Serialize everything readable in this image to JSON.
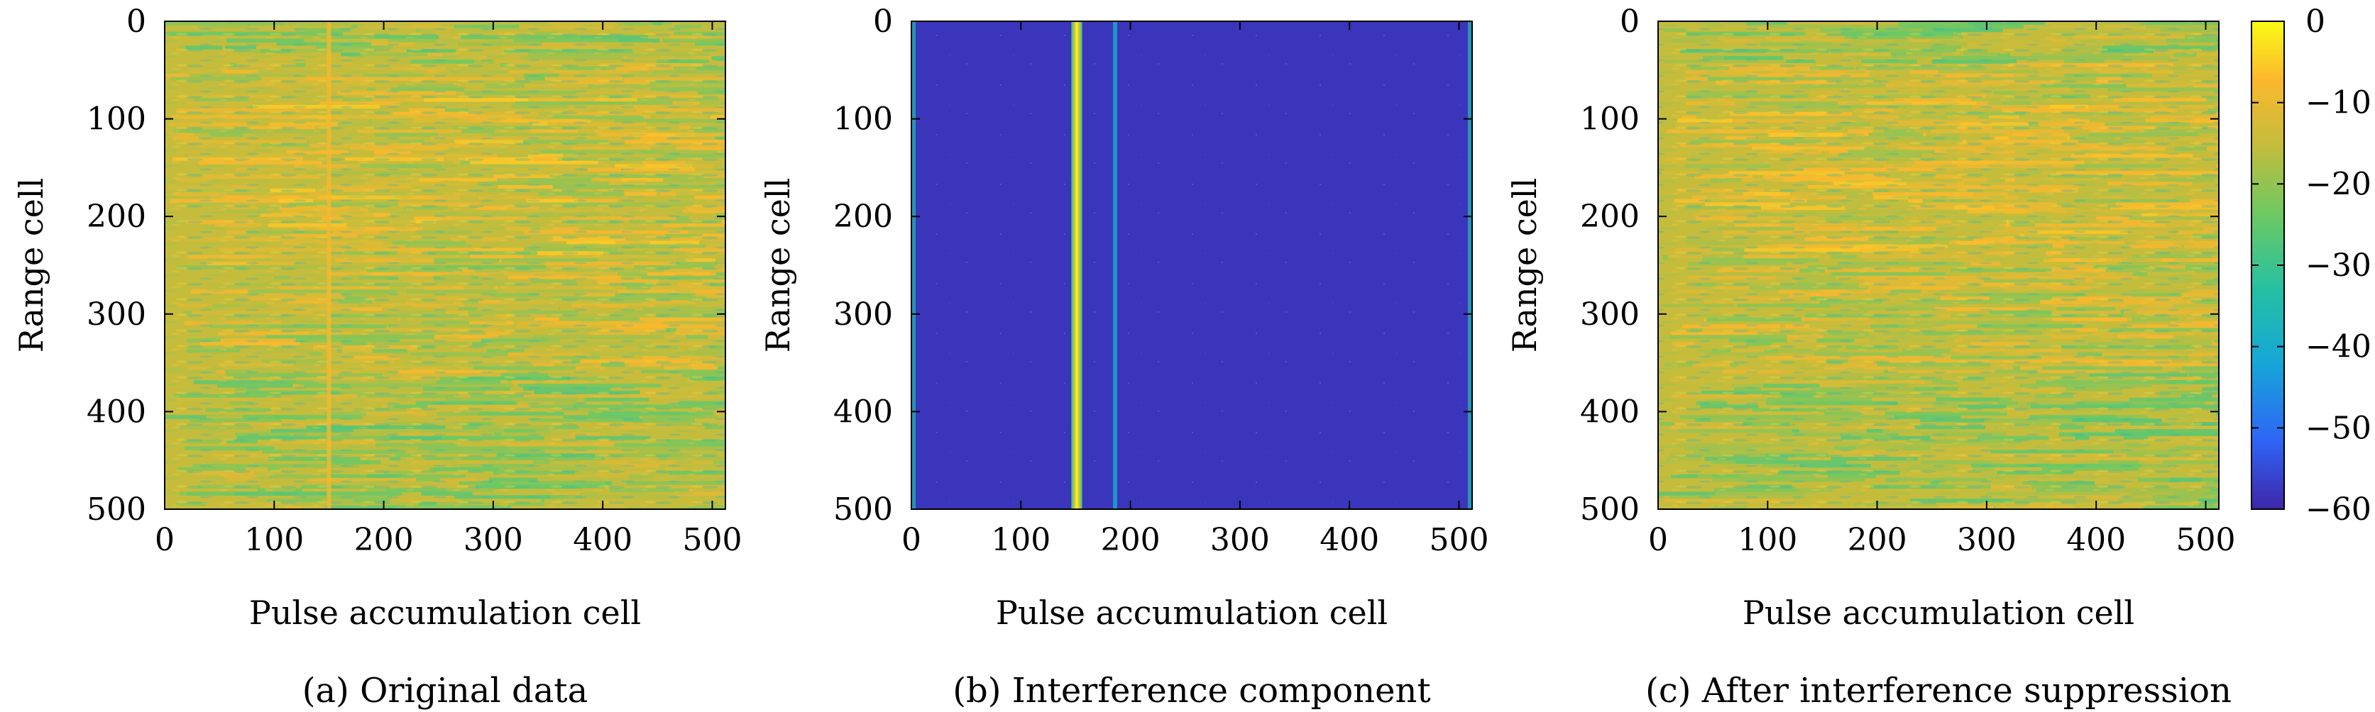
{
  "chart_data": [
    {
      "type": "heatmap",
      "caption": "(a) Original data",
      "xlabel": "Pulse accumulation cell",
      "ylabel": "Range cell",
      "xlim": [
        0,
        512
      ],
      "ylim": [
        500,
        0
      ],
      "xticks": [
        "0",
        "100",
        "200",
        "300",
        "400",
        "500"
      ],
      "yticks": [
        "0",
        "100",
        "200",
        "300",
        "400",
        "500"
      ],
      "background_level_db": -15,
      "features": [
        {
          "kind": "vertical_line",
          "x": 150,
          "level_db": -8
        }
      ]
    },
    {
      "type": "heatmap",
      "caption": "(b) Interference component",
      "xlabel": "Pulse accumulation cell",
      "ylabel": "Range cell",
      "xlim": [
        0,
        512
      ],
      "ylim": [
        500,
        0
      ],
      "xticks": [
        "0",
        "100",
        "200",
        "300",
        "400",
        "500"
      ],
      "yticks": [
        "0",
        "100",
        "200",
        "300",
        "400",
        "500"
      ],
      "background_level_db": -58,
      "features": [
        {
          "kind": "vertical_band",
          "x": [
            146,
            156
          ],
          "level_db": -5
        },
        {
          "kind": "vertical_line",
          "x": 186,
          "level_db": -40
        },
        {
          "kind": "edge_column",
          "x": 2,
          "level_db": -35
        },
        {
          "kind": "edge_column",
          "x": 510,
          "level_db": -35
        }
      ]
    },
    {
      "type": "heatmap",
      "caption": "(c) After interference suppression",
      "xlabel": "Pulse accumulation cell",
      "ylabel": "Range cell",
      "xlim": [
        0,
        512
      ],
      "ylim": [
        500,
        0
      ],
      "xticks": [
        "0",
        "100",
        "200",
        "300",
        "400",
        "500"
      ],
      "yticks": [
        "0",
        "100",
        "200",
        "300",
        "400",
        "500"
      ],
      "background_level_db": -15,
      "features": []
    }
  ],
  "colorbar": {
    "range": [
      -60,
      0
    ],
    "ticks": [
      "0",
      "−10",
      "−20",
      "−30",
      "−40",
      "−50",
      "−60"
    ],
    "colors": [
      "#3e26a8",
      "#2f65f6",
      "#16a6d8",
      "#25c0a3",
      "#6bc964",
      "#c6bc3c",
      "#fcb82d",
      "#f9fb15"
    ]
  }
}
